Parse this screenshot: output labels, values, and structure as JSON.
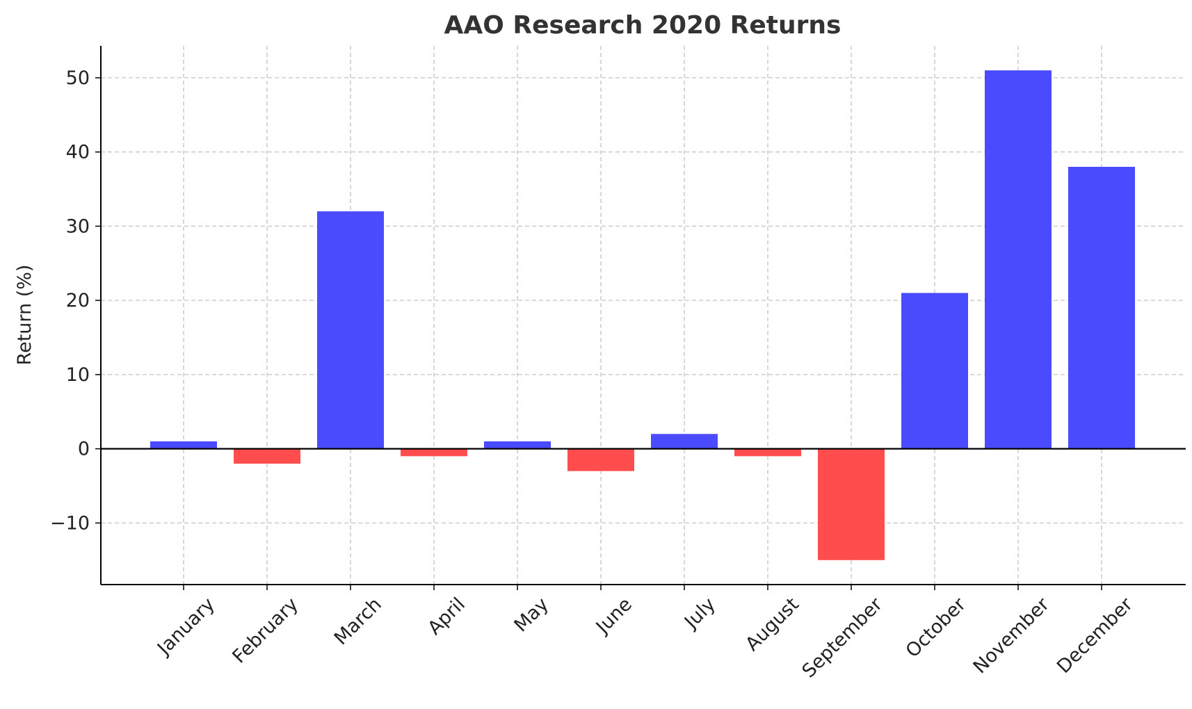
{
  "chart_data": {
    "type": "bar",
    "title": "AAO Research 2020 Returns",
    "xlabel": "",
    "ylabel": "Return (%)",
    "categories": [
      "January",
      "February",
      "March",
      "April",
      "May",
      "June",
      "July",
      "August",
      "September",
      "October",
      "November",
      "December"
    ],
    "values": [
      1,
      -2,
      32,
      -1,
      1,
      -3,
      2,
      -1,
      -15,
      21,
      51,
      38
    ],
    "ylim": [
      -18.3,
      54.3
    ],
    "yticks": [
      -10,
      0,
      10,
      20,
      30,
      40,
      50
    ],
    "ytick_labels": [
      "−10",
      "0",
      "10",
      "20",
      "30",
      "40",
      "50"
    ],
    "grid": true,
    "zero_line": true,
    "colors": {
      "positive": "#4a4aff",
      "negative": "#ff4d4d"
    }
  }
}
